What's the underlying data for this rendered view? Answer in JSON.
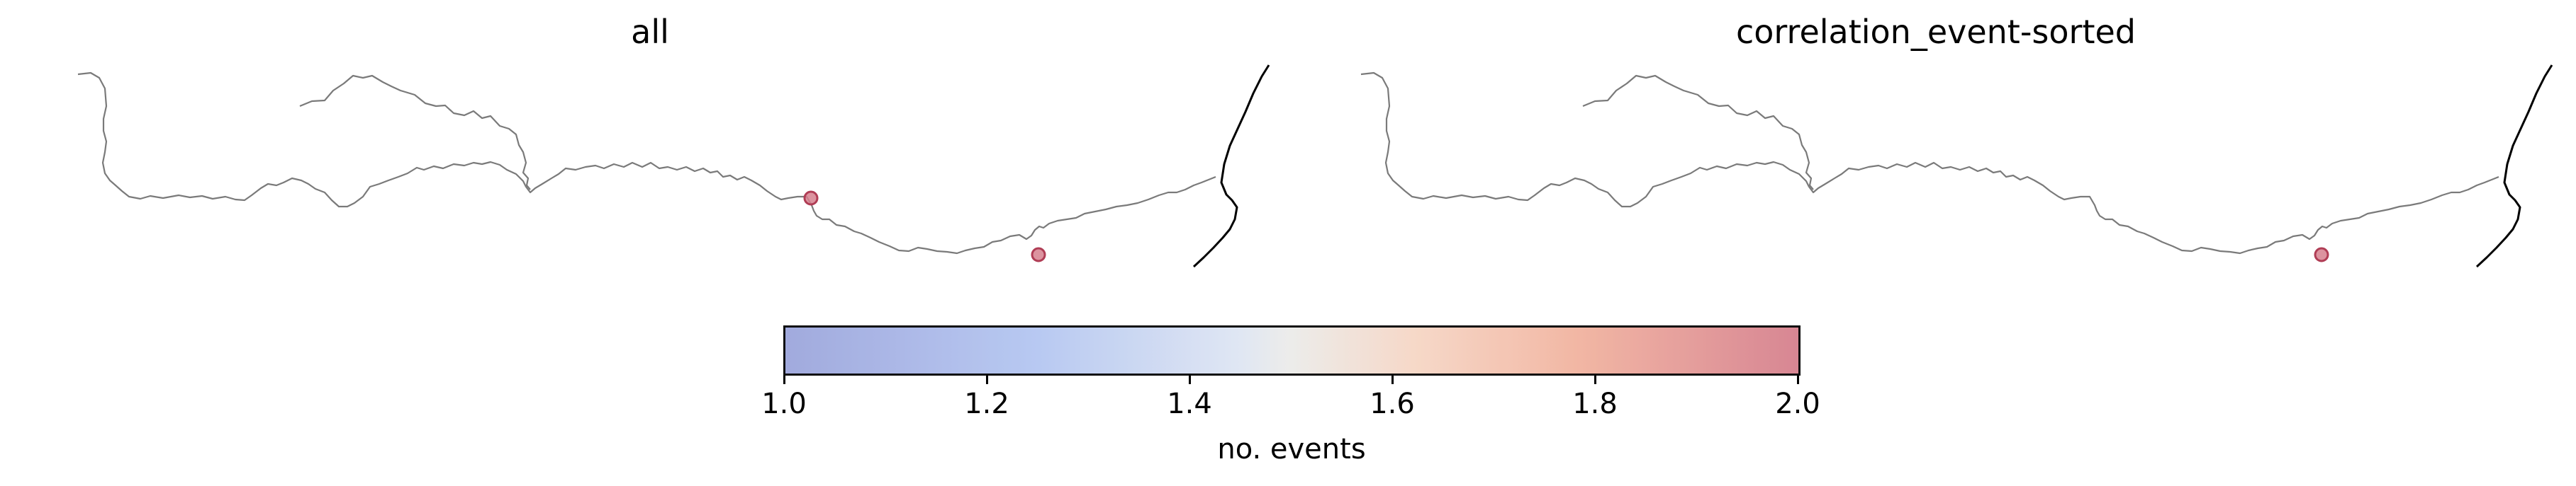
{
  "panels": [
    {
      "title": "all",
      "stations": [
        {
          "value": 2.0
        },
        {
          "value": 2.0
        }
      ]
    },
    {
      "title": "correlation_event-sorted",
      "stations": [
        {
          "value": 2.0
        }
      ]
    }
  ],
  "colorbar": {
    "label": "no. events",
    "range": [
      1.0,
      2.0
    ],
    "ticks": [
      "1.0",
      "1.2",
      "1.4",
      "1.6",
      "1.8",
      "2.0"
    ],
    "colormap": "coolwarm",
    "colors": {
      "low": "#9da6dc",
      "mid": "#ecebe9",
      "high": "#d6808e"
    }
  }
}
